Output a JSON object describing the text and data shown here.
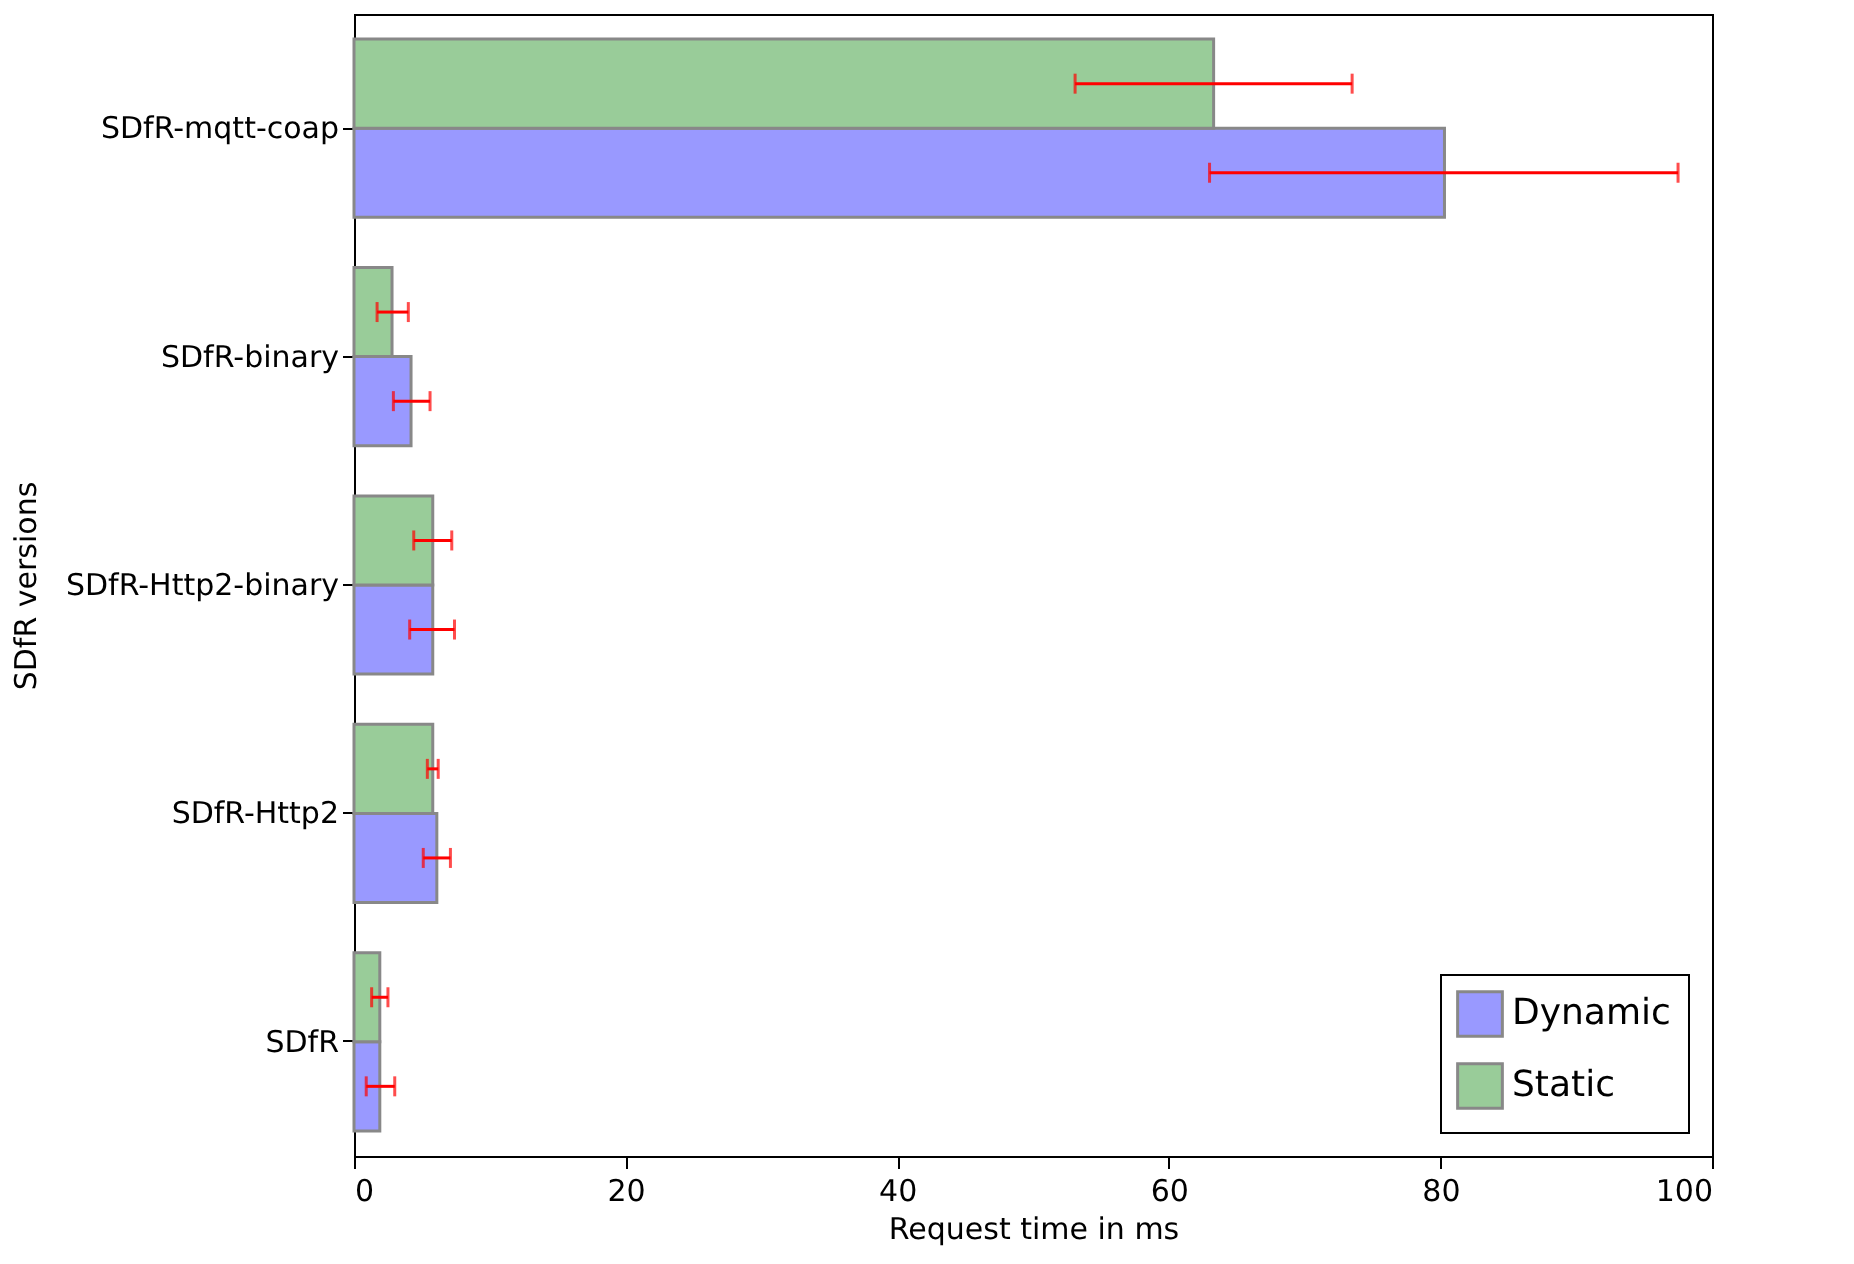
{
  "chart_data": {
    "type": "bar",
    "orientation": "horizontal",
    "xlabel": "Request time in ms",
    "ylabel": "SDfR versions",
    "categories": [
      "SDfR-mqtt-coap",
      "SDfR-binary",
      "SDfR-Http2-binary",
      "SDfR-Http2",
      "SDfR"
    ],
    "series": [
      {
        "name": "Dynamic",
        "color": "#9999ff",
        "values": [
          80.3,
          4.2,
          5.8,
          6.1,
          1.9
        ],
        "errors": [
          [
            63.0,
            97.5
          ],
          [
            2.9,
            5.6
          ],
          [
            4.1,
            7.4
          ],
          [
            5.1,
            7.1
          ],
          [
            0.9,
            3.0
          ]
        ]
      },
      {
        "name": "Static",
        "color": "#99cc99",
        "values": [
          63.3,
          2.8,
          5.8,
          5.8,
          1.9
        ],
        "errors": [
          [
            53.1,
            73.5
          ],
          [
            1.7,
            4.0
          ],
          [
            4.4,
            7.2
          ],
          [
            5.4,
            6.2
          ],
          [
            1.3,
            2.5
          ]
        ]
      }
    ],
    "xlim": [
      0,
      100
    ],
    "xticks": [
      0,
      20,
      40,
      60,
      80,
      100
    ],
    "grid": false,
    "legend": "bottom right"
  }
}
